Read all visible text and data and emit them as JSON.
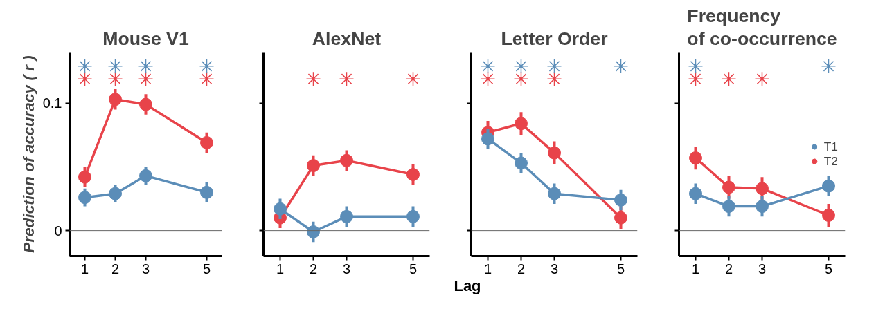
{
  "chart_data": [
    {
      "type": "line",
      "title": "Mouse V1",
      "ylabel": "Prediction of accuracy ( r )",
      "x": [
        1,
        2,
        3,
        5
      ],
      "xlim": [
        0.5,
        5.5
      ],
      "xticks": [
        1,
        2,
        3,
        5
      ],
      "ylim": [
        -0.02,
        0.14
      ],
      "yticks": [
        0,
        0.1
      ],
      "grid": false,
      "marker": "circle",
      "ref_lines": [
        {
          "axis": "y",
          "value": 0,
          "color": "#666666"
        }
      ],
      "series": [
        {
          "color": "#5b8db8",
          "values": [
            0.026,
            0.029,
            0.043,
            0.03
          ],
          "errors": [
            0.007,
            0.007,
            0.007,
            0.008
          ]
        },
        {
          "color": "#e8434a",
          "values": [
            0.042,
            0.103,
            0.099,
            0.069
          ],
          "errors": [
            0.008,
            0.008,
            0.008,
            0.008
          ]
        },
        {
          "type": "scatter",
          "marker": "cross",
          "color": "#5b8db8",
          "x": [
            1,
            2,
            3,
            5
          ],
          "values": [
            0.129,
            0.129,
            0.129,
            0.129
          ]
        },
        {
          "type": "scatter",
          "marker": "cross",
          "color": "#e8434a",
          "x": [
            1,
            2,
            3,
            5
          ],
          "values": [
            0.119,
            0.119,
            0.119,
            0.119
          ]
        }
      ]
    },
    {
      "type": "line",
      "title": "AlexNet",
      "xlabel": "Lag",
      "x": [
        1,
        2,
        3,
        5
      ],
      "xlim": [
        0.5,
        5.5
      ],
      "xticks": [
        1,
        2,
        3,
        5
      ],
      "ylim": [
        -0.02,
        0.14
      ],
      "yticks": [
        0,
        0.1
      ],
      "tick_labels": "x",
      "grid": false,
      "marker": "circle",
      "ref_lines": [
        {
          "axis": "y",
          "value": 0,
          "color": "#666666"
        }
      ],
      "series": [
        {
          "color": "#5b8db8",
          "values": [
            0.017,
            -0.001,
            0.011,
            0.011
          ],
          "errors": [
            0.008,
            0.008,
            0.008,
            0.008
          ]
        },
        {
          "color": "#e8434a",
          "values": [
            0.01,
            0.051,
            0.055,
            0.044
          ],
          "errors": [
            0.008,
            0.008,
            0.008,
            0.008
          ]
        },
        {
          "type": "scatter",
          "marker": "cross",
          "color": "#e8434a",
          "x": [
            2,
            3,
            5
          ],
          "values": [
            0.119,
            0.119,
            0.119
          ]
        }
      ]
    },
    {
      "type": "line",
      "title": "Letter Order",
      "x": [
        1,
        2,
        3,
        5
      ],
      "xlim": [
        0.5,
        5.5
      ],
      "xticks": [
        1,
        2,
        3,
        5
      ],
      "ylim": [
        -0.02,
        0.14
      ],
      "yticks": [
        0,
        0.1
      ],
      "tick_labels": "x",
      "grid": false,
      "marker": "circle",
      "ref_lines": [
        {
          "axis": "y",
          "value": 0,
          "color": "#666666"
        }
      ],
      "series": [
        {
          "color": "#5b8db8",
          "values": [
            0.072,
            0.053,
            0.029,
            0.024
          ],
          "errors": [
            0.008,
            0.008,
            0.008,
            0.008
          ]
        },
        {
          "color": "#e8434a",
          "values": [
            0.077,
            0.084,
            0.061,
            0.01
          ],
          "errors": [
            0.009,
            0.009,
            0.009,
            0.009
          ]
        },
        {
          "type": "scatter",
          "marker": "cross",
          "color": "#5b8db8",
          "x": [
            1,
            2,
            3,
            5
          ],
          "values": [
            0.129,
            0.129,
            0.129,
            0.129
          ]
        },
        {
          "type": "scatter",
          "marker": "cross",
          "color": "#e8434a",
          "x": [
            1,
            2,
            3
          ],
          "values": [
            0.119,
            0.119,
            0.119
          ]
        }
      ]
    },
    {
      "type": "line",
      "title": "Frequency\nof co-occurrence",
      "x": [
        1,
        2,
        3,
        5
      ],
      "xlim": [
        0.5,
        5.5
      ],
      "xticks": [
        1,
        2,
        3,
        5
      ],
      "ylim": [
        -0.02,
        0.14
      ],
      "yticks": [
        0,
        0.1
      ],
      "tick_labels": "x",
      "grid": false,
      "legend": "right",
      "marker": "circle",
      "ref_lines": [
        {
          "axis": "y",
          "value": 0,
          "color": "#666666"
        }
      ],
      "series": [
        {
          "name": "T1",
          "color": "#5b8db8",
          "values": [
            0.029,
            0.019,
            0.019,
            0.035
          ],
          "errors": [
            0.008,
            0.008,
            0.008,
            0.008
          ]
        },
        {
          "name": "T2",
          "color": "#e8434a",
          "values": [
            0.057,
            0.034,
            0.033,
            0.012
          ],
          "errors": [
            0.009,
            0.009,
            0.009,
            0.009
          ]
        },
        {
          "type": "scatter",
          "marker": "cross",
          "color": "#5b8db8",
          "x": [
            1,
            5
          ],
          "values": [
            0.129,
            0.129
          ]
        },
        {
          "type": "scatter",
          "marker": "cross",
          "color": "#e8434a",
          "x": [
            1,
            2,
            3
          ],
          "values": [
            0.119,
            0.119,
            0.119
          ]
        }
      ]
    }
  ]
}
